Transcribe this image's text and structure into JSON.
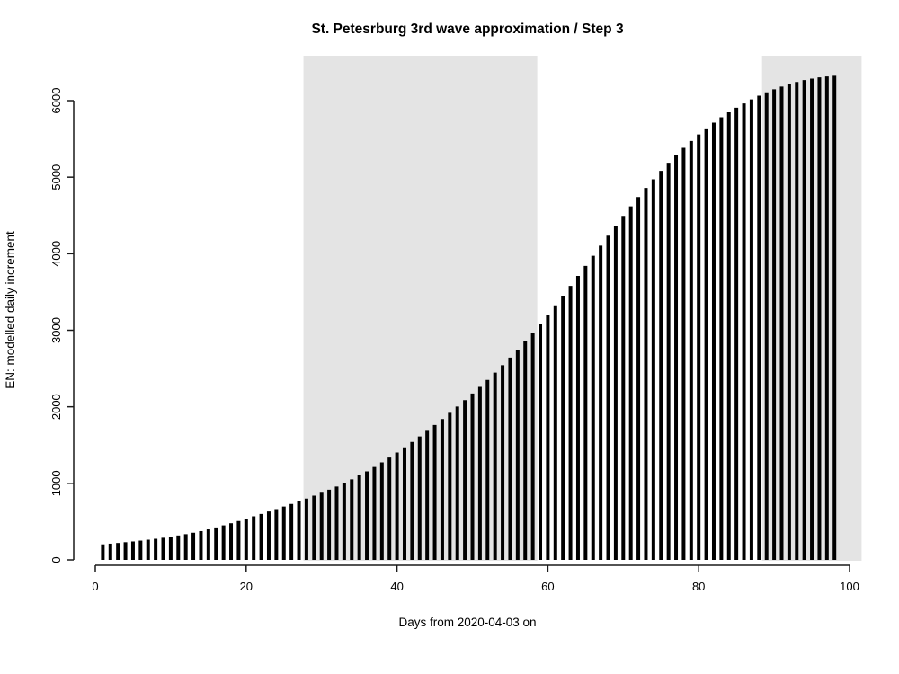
{
  "chart_data": {
    "type": "bar",
    "title": "St. Petesrburg 3rd wave approximation / Step 3",
    "xlabel": "Days from 2020-04-03 on",
    "ylabel": "EN: modelled daily increment",
    "x_start": 1,
    "x_step": 1,
    "values": [
      203,
      212,
      221,
      231,
      241,
      252,
      264,
      276,
      289,
      303,
      319,
      336,
      355,
      376,
      399,
      424,
      451,
      479,
      508,
      538,
      569,
      600,
      632,
      664,
      697,
      731,
      766,
      802,
      839,
      877,
      917,
      959,
      1004,
      1052,
      1103,
      1157,
      1214,
      1274,
      1337,
      1403,
      1471,
      1541,
      1613,
      1687,
      1763,
      1841,
      1921,
      2003,
      2087,
      2173,
      2261,
      2352,
      2446,
      2543,
      2643,
      2747,
      2855,
      2967,
      3083,
      3203,
      3326,
      3452,
      3580,
      3710,
      3841,
      3973,
      4105,
      4236,
      4366,
      4494,
      4619,
      4741,
      4859,
      4973,
      5083,
      5188,
      5288,
      5383,
      5473,
      5558,
      5638,
      5713,
      5783,
      5848,
      5908,
      5964,
      6016,
      6064,
      6108,
      6148,
      6184,
      6216,
      6244,
      6268,
      6288,
      6304,
      6316,
      6324
    ],
    "xticks": [
      0,
      20,
      40,
      60,
      80,
      100
    ],
    "yticks": [
      0,
      1000,
      2000,
      3000,
      4000,
      5000,
      6000
    ],
    "xlim": [
      -2.9,
      101.9
    ],
    "ylim": [
      0,
      6580
    ],
    "grid": false,
    "legend": null,
    "shaded_regions": [
      {
        "from": 27.6,
        "to": 58.6
      },
      {
        "from": 88.4,
        "to": 101.6
      }
    ],
    "bar_color": "#000000",
    "shade_color": "#e4e4e4",
    "axis_color": "#1a1a1a"
  }
}
